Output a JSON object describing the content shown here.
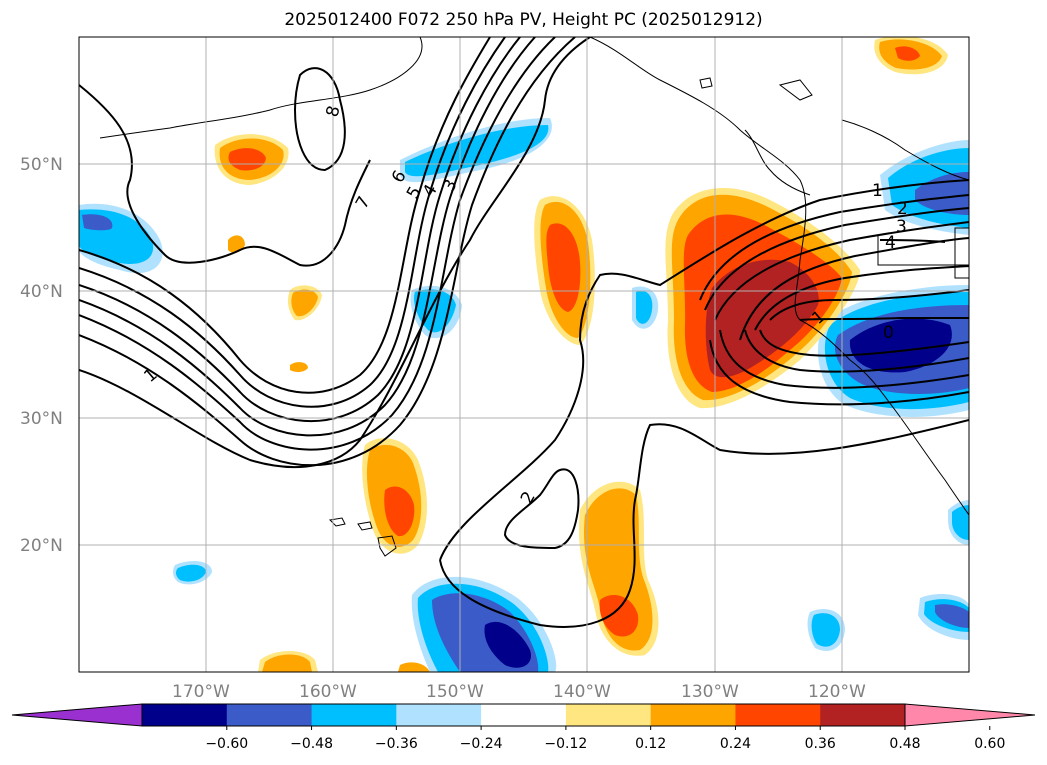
{
  "title": "2025012400 F072 250 hPa PV, Height PC (2025012912)",
  "map": {
    "lat_ticks": [
      "50°N",
      "40°N",
      "30°N",
      "20°N"
    ],
    "lon_ticks": [
      "170°W",
      "160°W",
      "150°W",
      "140°W",
      "130°W",
      "120°W"
    ],
    "lon_range": [
      -180,
      -110
    ],
    "lat_range": [
      10,
      60
    ],
    "grid": true
  },
  "colorbar": {
    "tick_labels": [
      "−0.60",
      "−0.48",
      "−0.36",
      "−0.24",
      "−0.12",
      "0.12",
      "0.24",
      "0.36",
      "0.48",
      "0.60"
    ],
    "colors": [
      "#9b30d0",
      "#00008b",
      "#3a5bc8",
      "#00bfff",
      "#b0e2ff",
      "#ffffff",
      "#ffe680",
      "#ffa500",
      "#ff4500",
      "#b22222",
      "#ff88aa"
    ]
  },
  "contour_labels": [
    "8",
    "7",
    "6",
    "5",
    "4",
    "3",
    "2",
    "1",
    "1",
    "2",
    "3",
    "4",
    "1",
    "0"
  ]
}
